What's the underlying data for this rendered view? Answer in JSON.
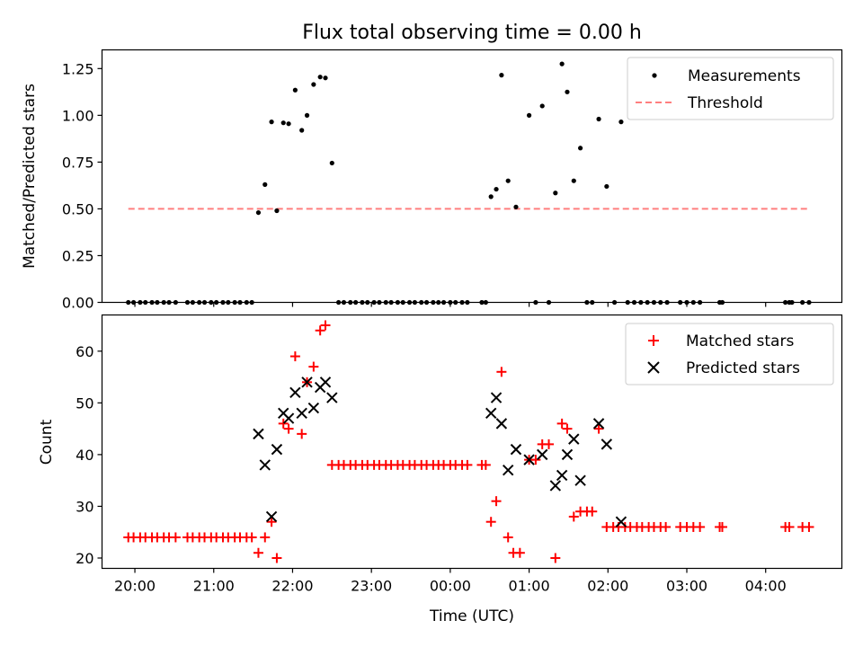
{
  "chart_data": [
    {
      "type": "scatter",
      "title": "Flux total observing time = 0.00 h",
      "xlabel": "",
      "ylabel": "Matched/Predicted stars",
      "xlim": [
        "19:35",
        "04:58"
      ],
      "ylim": [
        0,
        1.35
      ],
      "x_ticks": [
        "20:00",
        "21:00",
        "22:00",
        "23:00",
        "00:00",
        "01:00",
        "02:00",
        "03:00",
        "04:00"
      ],
      "y_ticks": [
        "0.00",
        "0.25",
        "0.50",
        "0.75",
        "1.00",
        "1.25"
      ],
      "legend": {
        "position": "top-right",
        "entries": [
          "Measurements",
          "Threshold"
        ]
      },
      "series": [
        {
          "name": "Measurements",
          "marker": "dot",
          "color": "#000000",
          "points": [
            [
              "19:55",
              0
            ],
            [
              "19:59",
              0
            ],
            [
              "20:04",
              0
            ],
            [
              "20:08",
              0
            ],
            [
              "20:13",
              0
            ],
            [
              "20:17",
              0
            ],
            [
              "20:22",
              0
            ],
            [
              "20:26",
              0
            ],
            [
              "20:31",
              0
            ],
            [
              "20:40",
              0
            ],
            [
              "20:44",
              0
            ],
            [
              "20:49",
              0
            ],
            [
              "20:53",
              0
            ],
            [
              "20:58",
              0
            ],
            [
              "21:02",
              0
            ],
            [
              "21:07",
              0
            ],
            [
              "21:11",
              0
            ],
            [
              "21:16",
              0
            ],
            [
              "21:20",
              0
            ],
            [
              "21:25",
              0
            ],
            [
              "21:29",
              0
            ],
            [
              "21:34",
              0.48
            ],
            [
              "21:39",
              0.63
            ],
            [
              "21:44",
              0.965
            ],
            [
              "21:48",
              0.49
            ],
            [
              "21:53",
              0.96
            ],
            [
              "21:57",
              0.955
            ],
            [
              "22:02",
              1.135
            ],
            [
              "22:07",
              0.92
            ],
            [
              "22:11",
              1.0
            ],
            [
              "22:16",
              1.165
            ],
            [
              "22:21",
              1.205
            ],
            [
              "22:25",
              1.2
            ],
            [
              "22:30",
              0.745
            ],
            [
              "22:35",
              0
            ],
            [
              "22:39",
              0
            ],
            [
              "22:44",
              0
            ],
            [
              "22:48",
              0
            ],
            [
              "22:53",
              0
            ],
            [
              "22:57",
              0
            ],
            [
              "23:02",
              0
            ],
            [
              "23:06",
              0
            ],
            [
              "23:11",
              0
            ],
            [
              "23:15",
              0
            ],
            [
              "23:20",
              0
            ],
            [
              "23:24",
              0
            ],
            [
              "23:29",
              0
            ],
            [
              "23:33",
              0
            ],
            [
              "23:38",
              0
            ],
            [
              "23:42",
              0
            ],
            [
              "23:47",
              0
            ],
            [
              "23:51",
              0
            ],
            [
              "23:55",
              0
            ],
            [
              "00:00",
              0
            ],
            [
              "00:04",
              0
            ],
            [
              "00:09",
              0
            ],
            [
              "00:13",
              0
            ],
            [
              "00:24",
              0
            ],
            [
              "00:27",
              0
            ],
            [
              "00:31",
              0.565
            ],
            [
              "00:35",
              0.605
            ],
            [
              "00:39",
              1.215
            ],
            [
              "00:44",
              0.65
            ],
            [
              "00:50",
              0.51
            ],
            [
              "01:00",
              1.0
            ],
            [
              "01:05",
              0
            ],
            [
              "01:10",
              1.05
            ],
            [
              "01:15",
              0
            ],
            [
              "01:20",
              0.585
            ],
            [
              "01:25",
              1.275
            ],
            [
              "01:29",
              1.125
            ],
            [
              "01:34",
              0.65
            ],
            [
              "01:39",
              0.825
            ],
            [
              "01:44",
              0
            ],
            [
              "01:48",
              0
            ],
            [
              "01:53",
              0.98
            ],
            [
              "01:59",
              0.62
            ],
            [
              "02:05",
              0
            ],
            [
              "02:10",
              0.965
            ],
            [
              "02:15",
              0
            ],
            [
              "02:20",
              0
            ],
            [
              "02:25",
              0
            ],
            [
              "02:30",
              0
            ],
            [
              "02:35",
              0
            ],
            [
              "02:40",
              0
            ],
            [
              "02:45",
              0
            ],
            [
              "02:55",
              0
            ],
            [
              "03:00",
              0
            ],
            [
              "03:05",
              0
            ],
            [
              "03:10",
              0
            ],
            [
              "03:25",
              0
            ],
            [
              "03:27",
              0
            ],
            [
              "04:15",
              0
            ],
            [
              "04:18",
              0
            ],
            [
              "04:20",
              0
            ],
            [
              "04:28",
              0
            ],
            [
              "04:33",
              0
            ]
          ]
        },
        {
          "name": "Threshold",
          "style": "dashed-line",
          "color": "#ff7f7f",
          "points": [
            [
              "19:55",
              0.5
            ],
            [
              "04:33",
              0.5
            ]
          ]
        }
      ]
    },
    {
      "type": "scatter",
      "title": "",
      "xlabel": "Time (UTC)",
      "ylabel": "Count",
      "xlim": [
        "19:35",
        "04:58"
      ],
      "ylim": [
        18,
        67
      ],
      "x_ticks": [
        "20:00",
        "21:00",
        "22:00",
        "23:00",
        "00:00",
        "01:00",
        "02:00",
        "03:00",
        "04:00"
      ],
      "y_ticks": [
        "20",
        "30",
        "40",
        "50",
        "60"
      ],
      "legend": {
        "position": "top-right",
        "entries": [
          "Matched stars",
          "Predicted stars"
        ]
      },
      "series": [
        {
          "name": "Matched stars",
          "marker": "plus",
          "color": "#ff0000",
          "points": [
            [
              "19:55",
              24
            ],
            [
              "19:59",
              24
            ],
            [
              "20:04",
              24
            ],
            [
              "20:08",
              24
            ],
            [
              "20:13",
              24
            ],
            [
              "20:17",
              24
            ],
            [
              "20:22",
              24
            ],
            [
              "20:26",
              24
            ],
            [
              "20:31",
              24
            ],
            [
              "20:40",
              24
            ],
            [
              "20:44",
              24
            ],
            [
              "20:49",
              24
            ],
            [
              "20:53",
              24
            ],
            [
              "20:58",
              24
            ],
            [
              "21:02",
              24
            ],
            [
              "21:07",
              24
            ],
            [
              "21:11",
              24
            ],
            [
              "21:16",
              24
            ],
            [
              "21:20",
              24
            ],
            [
              "21:25",
              24
            ],
            [
              "21:29",
              24
            ],
            [
              "21:34",
              21
            ],
            [
              "21:39",
              24
            ],
            [
              "21:44",
              27
            ],
            [
              "21:48",
              20
            ],
            [
              "21:53",
              46
            ],
            [
              "21:57",
              45
            ],
            [
              "22:02",
              59
            ],
            [
              "22:07",
              44
            ],
            [
              "22:11",
              54
            ],
            [
              "22:16",
              57
            ],
            [
              "22:21",
              64
            ],
            [
              "22:25",
              65
            ],
            [
              "22:30",
              38
            ],
            [
              "22:35",
              38
            ],
            [
              "22:39",
              38
            ],
            [
              "22:44",
              38
            ],
            [
              "22:48",
              38
            ],
            [
              "22:53",
              38
            ],
            [
              "22:57",
              38
            ],
            [
              "23:02",
              38
            ],
            [
              "23:06",
              38
            ],
            [
              "23:11",
              38
            ],
            [
              "23:15",
              38
            ],
            [
              "23:20",
              38
            ],
            [
              "23:24",
              38
            ],
            [
              "23:29",
              38
            ],
            [
              "23:33",
              38
            ],
            [
              "23:38",
              38
            ],
            [
              "23:42",
              38
            ],
            [
              "23:47",
              38
            ],
            [
              "23:51",
              38
            ],
            [
              "23:55",
              38
            ],
            [
              "00:00",
              38
            ],
            [
              "00:04",
              38
            ],
            [
              "00:09",
              38
            ],
            [
              "00:13",
              38
            ],
            [
              "00:24",
              38
            ],
            [
              "00:27",
              38
            ],
            [
              "00:31",
              27
            ],
            [
              "00:35",
              31
            ],
            [
              "00:39",
              56
            ],
            [
              "00:44",
              24
            ],
            [
              "00:48",
              21
            ],
            [
              "00:53",
              21
            ],
            [
              "01:00",
              39
            ],
            [
              "01:05",
              39
            ],
            [
              "01:10",
              42
            ],
            [
              "01:15",
              42
            ],
            [
              "01:20",
              20
            ],
            [
              "01:25",
              46
            ],
            [
              "01:29",
              45
            ],
            [
              "01:34",
              28
            ],
            [
              "01:39",
              29
            ],
            [
              "01:44",
              29
            ],
            [
              "01:48",
              29
            ],
            [
              "01:53",
              45
            ],
            [
              "01:59",
              26
            ],
            [
              "02:04",
              26
            ],
            [
              "02:08",
              26
            ],
            [
              "02:13",
              26
            ],
            [
              "02:17",
              26
            ],
            [
              "02:22",
              26
            ],
            [
              "02:26",
              26
            ],
            [
              "02:31",
              26
            ],
            [
              "02:35",
              26
            ],
            [
              "02:40",
              26
            ],
            [
              "02:44",
              26
            ],
            [
              "02:55",
              26
            ],
            [
              "03:00",
              26
            ],
            [
              "03:05",
              26
            ],
            [
              "03:10",
              26
            ],
            [
              "03:25",
              26
            ],
            [
              "03:27",
              26
            ],
            [
              "04:15",
              26
            ],
            [
              "04:18",
              26
            ],
            [
              "04:28",
              26
            ],
            [
              "04:33",
              26
            ]
          ]
        },
        {
          "name": "Predicted stars",
          "marker": "x",
          "color": "#000000",
          "points": [
            [
              "21:34",
              44
            ],
            [
              "21:39",
              38
            ],
            [
              "21:44",
              28
            ],
            [
              "21:48",
              41
            ],
            [
              "21:53",
              48
            ],
            [
              "21:57",
              47
            ],
            [
              "22:02",
              52
            ],
            [
              "22:07",
              48
            ],
            [
              "22:11",
              54
            ],
            [
              "22:16",
              49
            ],
            [
              "22:21",
              53
            ],
            [
              "22:25",
              54
            ],
            [
              "22:30",
              51
            ],
            [
              "00:31",
              48
            ],
            [
              "00:35",
              51
            ],
            [
              "00:39",
              46
            ],
            [
              "00:44",
              37
            ],
            [
              "00:50",
              41
            ],
            [
              "01:00",
              39
            ],
            [
              "01:10",
              40
            ],
            [
              "01:20",
              34
            ],
            [
              "01:25",
              36
            ],
            [
              "01:29",
              40
            ],
            [
              "01:34",
              43
            ],
            [
              "01:39",
              35
            ],
            [
              "01:53",
              46
            ],
            [
              "01:59",
              42
            ],
            [
              "02:10",
              27
            ]
          ]
        }
      ]
    }
  ]
}
